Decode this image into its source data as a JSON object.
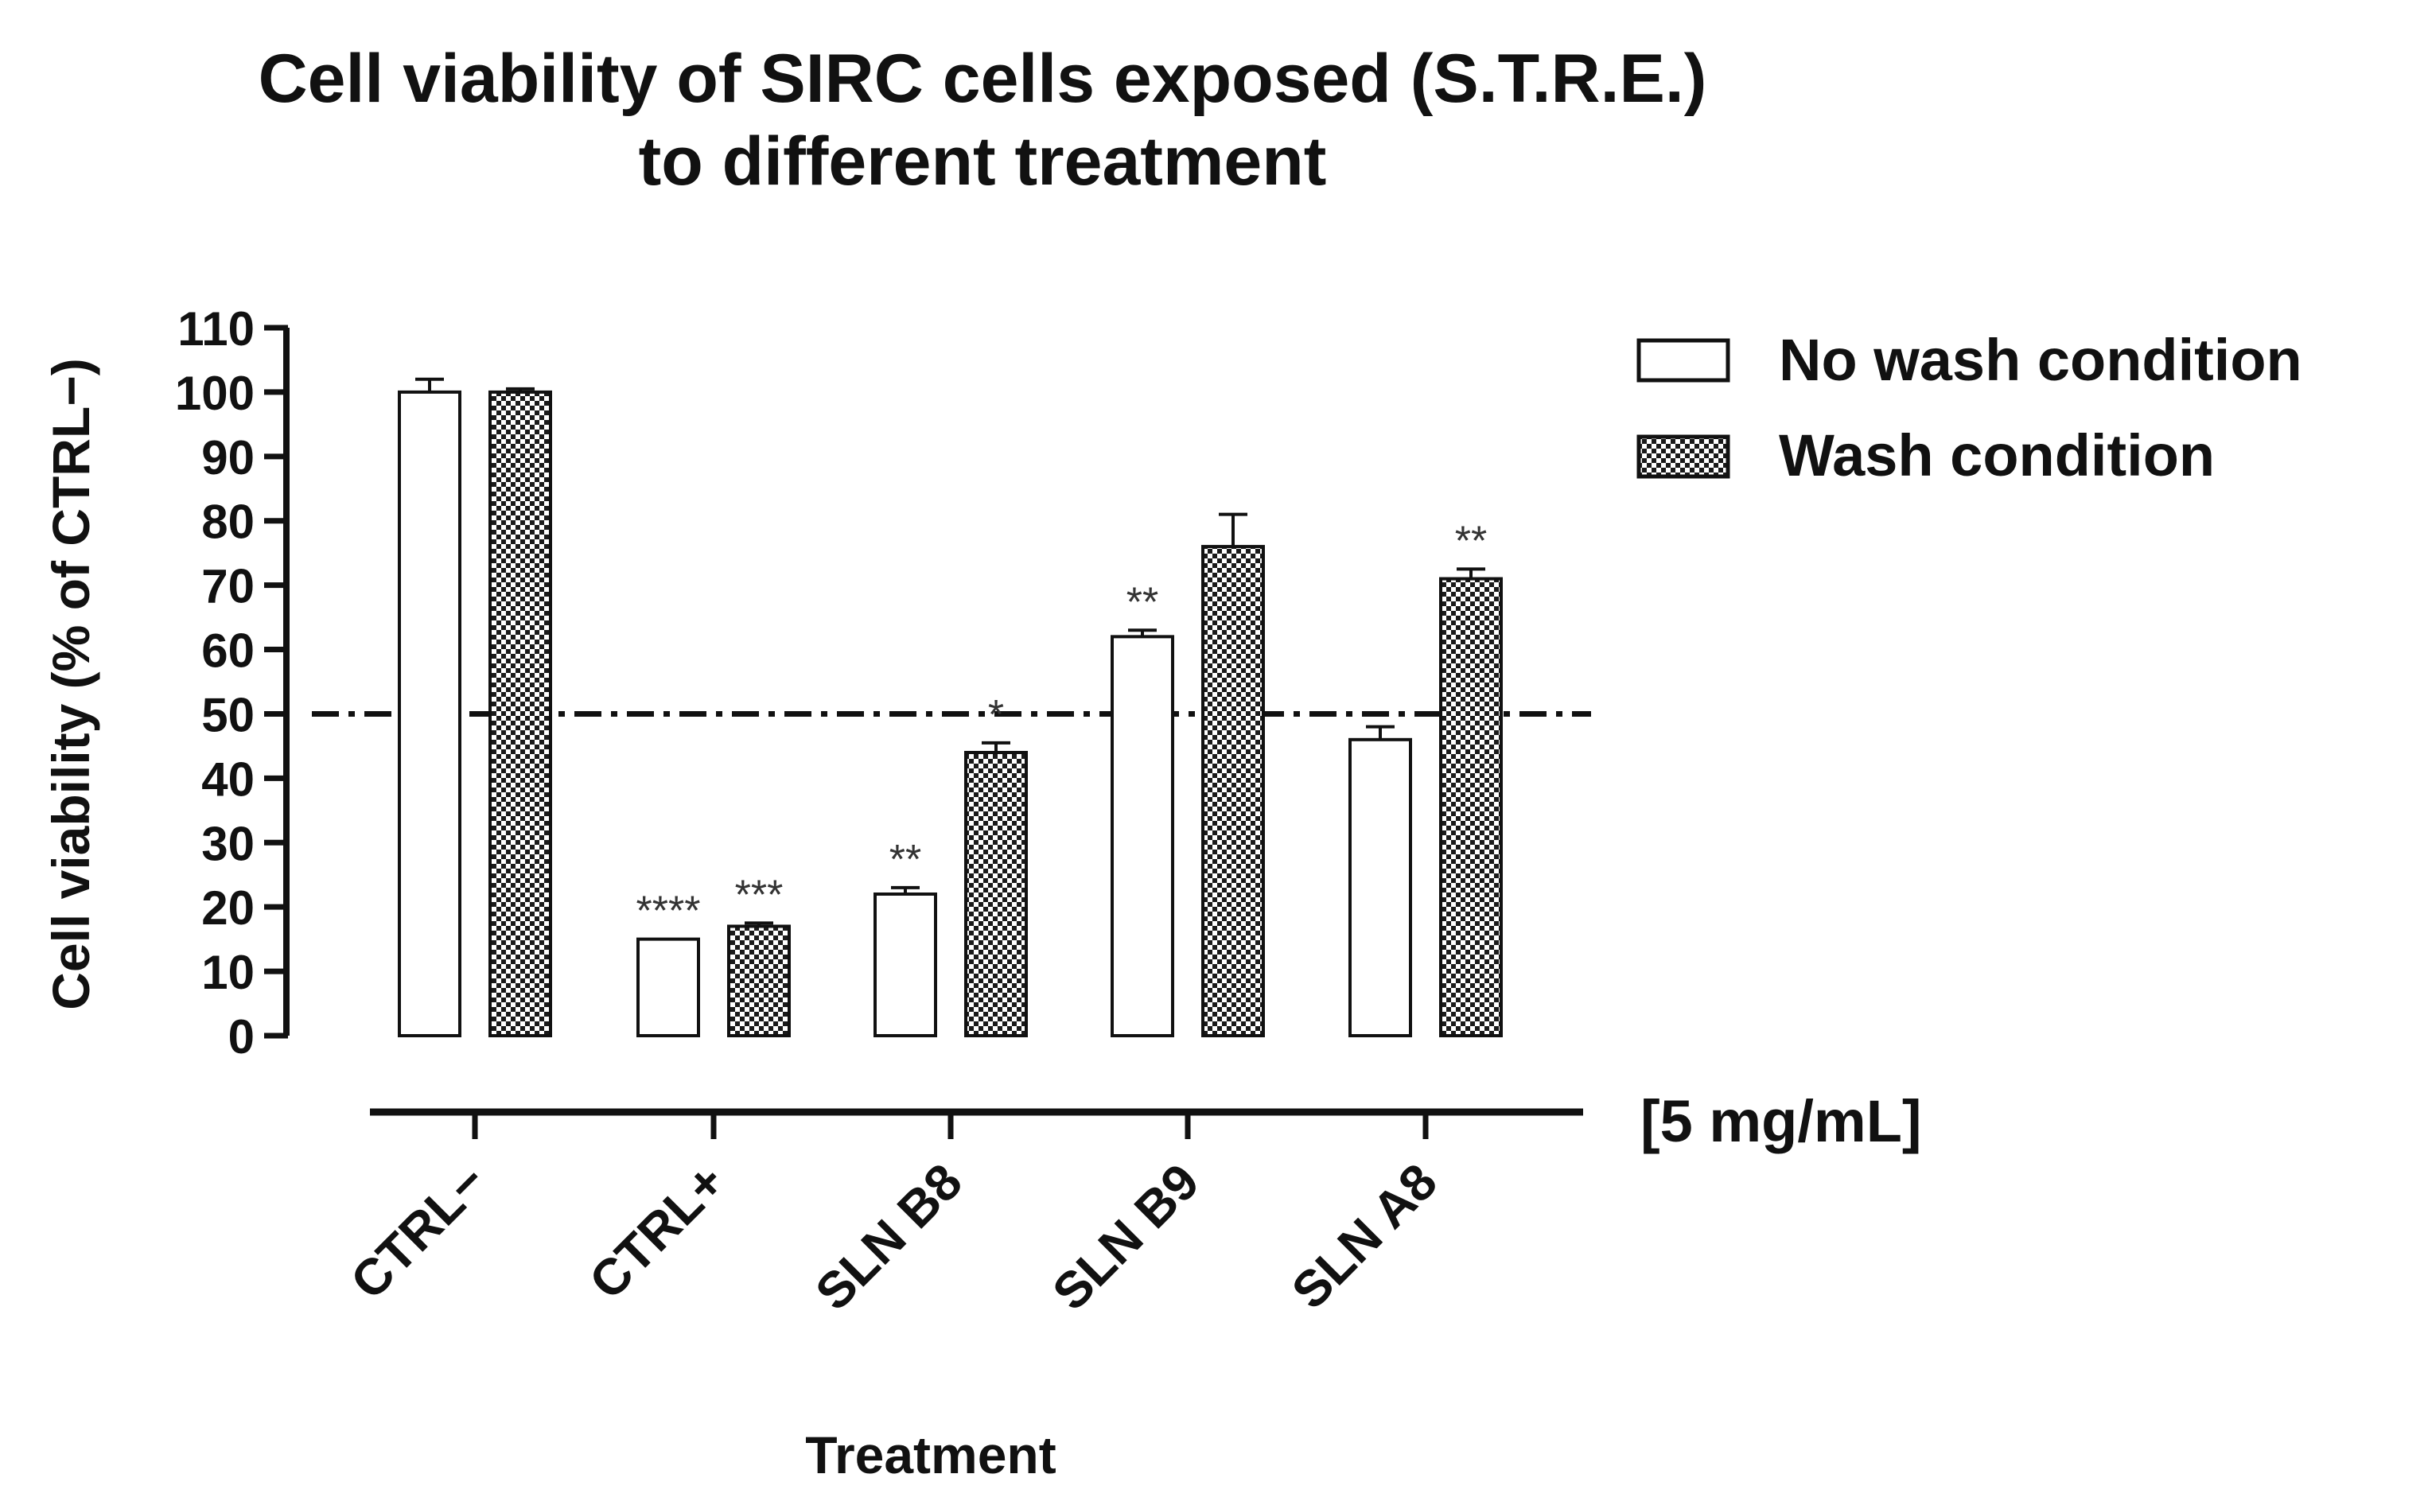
{
  "chart_data": {
    "type": "bar",
    "title_line1": "Cell viability of SIRC cells exposed (S.T.R.E.)",
    "title_line2": "to different treatment",
    "xlabel": "Treatment",
    "ylabel": "Cell viability (% of CTRL−)",
    "concentration_label": "[5 mg/mL]",
    "ylim": [
      0,
      110
    ],
    "yticks": [
      0,
      10,
      20,
      30,
      40,
      50,
      60,
      70,
      80,
      90,
      100,
      110
    ],
    "categories": [
      "CTRL−",
      "CTRL+",
      "SLN B8",
      "SLN B9",
      "SLN A8"
    ],
    "reference_line": 50,
    "series": [
      {
        "name": "No wash condition",
        "pattern": "open",
        "values": [
          100,
          15,
          22,
          62,
          46
        ],
        "errors": [
          2,
          0,
          1,
          1,
          2
        ],
        "significance": [
          "",
          "****",
          "**",
          "**",
          ""
        ]
      },
      {
        "name": "Wash condition",
        "pattern": "checkered",
        "values": [
          100,
          17,
          44,
          76,
          71
        ],
        "errors": [
          0.5,
          0.5,
          1.5,
          5,
          1.5
        ],
        "significance": [
          "",
          "***",
          "*",
          "",
          "**"
        ]
      }
    ],
    "legend_position": "top-right"
  }
}
